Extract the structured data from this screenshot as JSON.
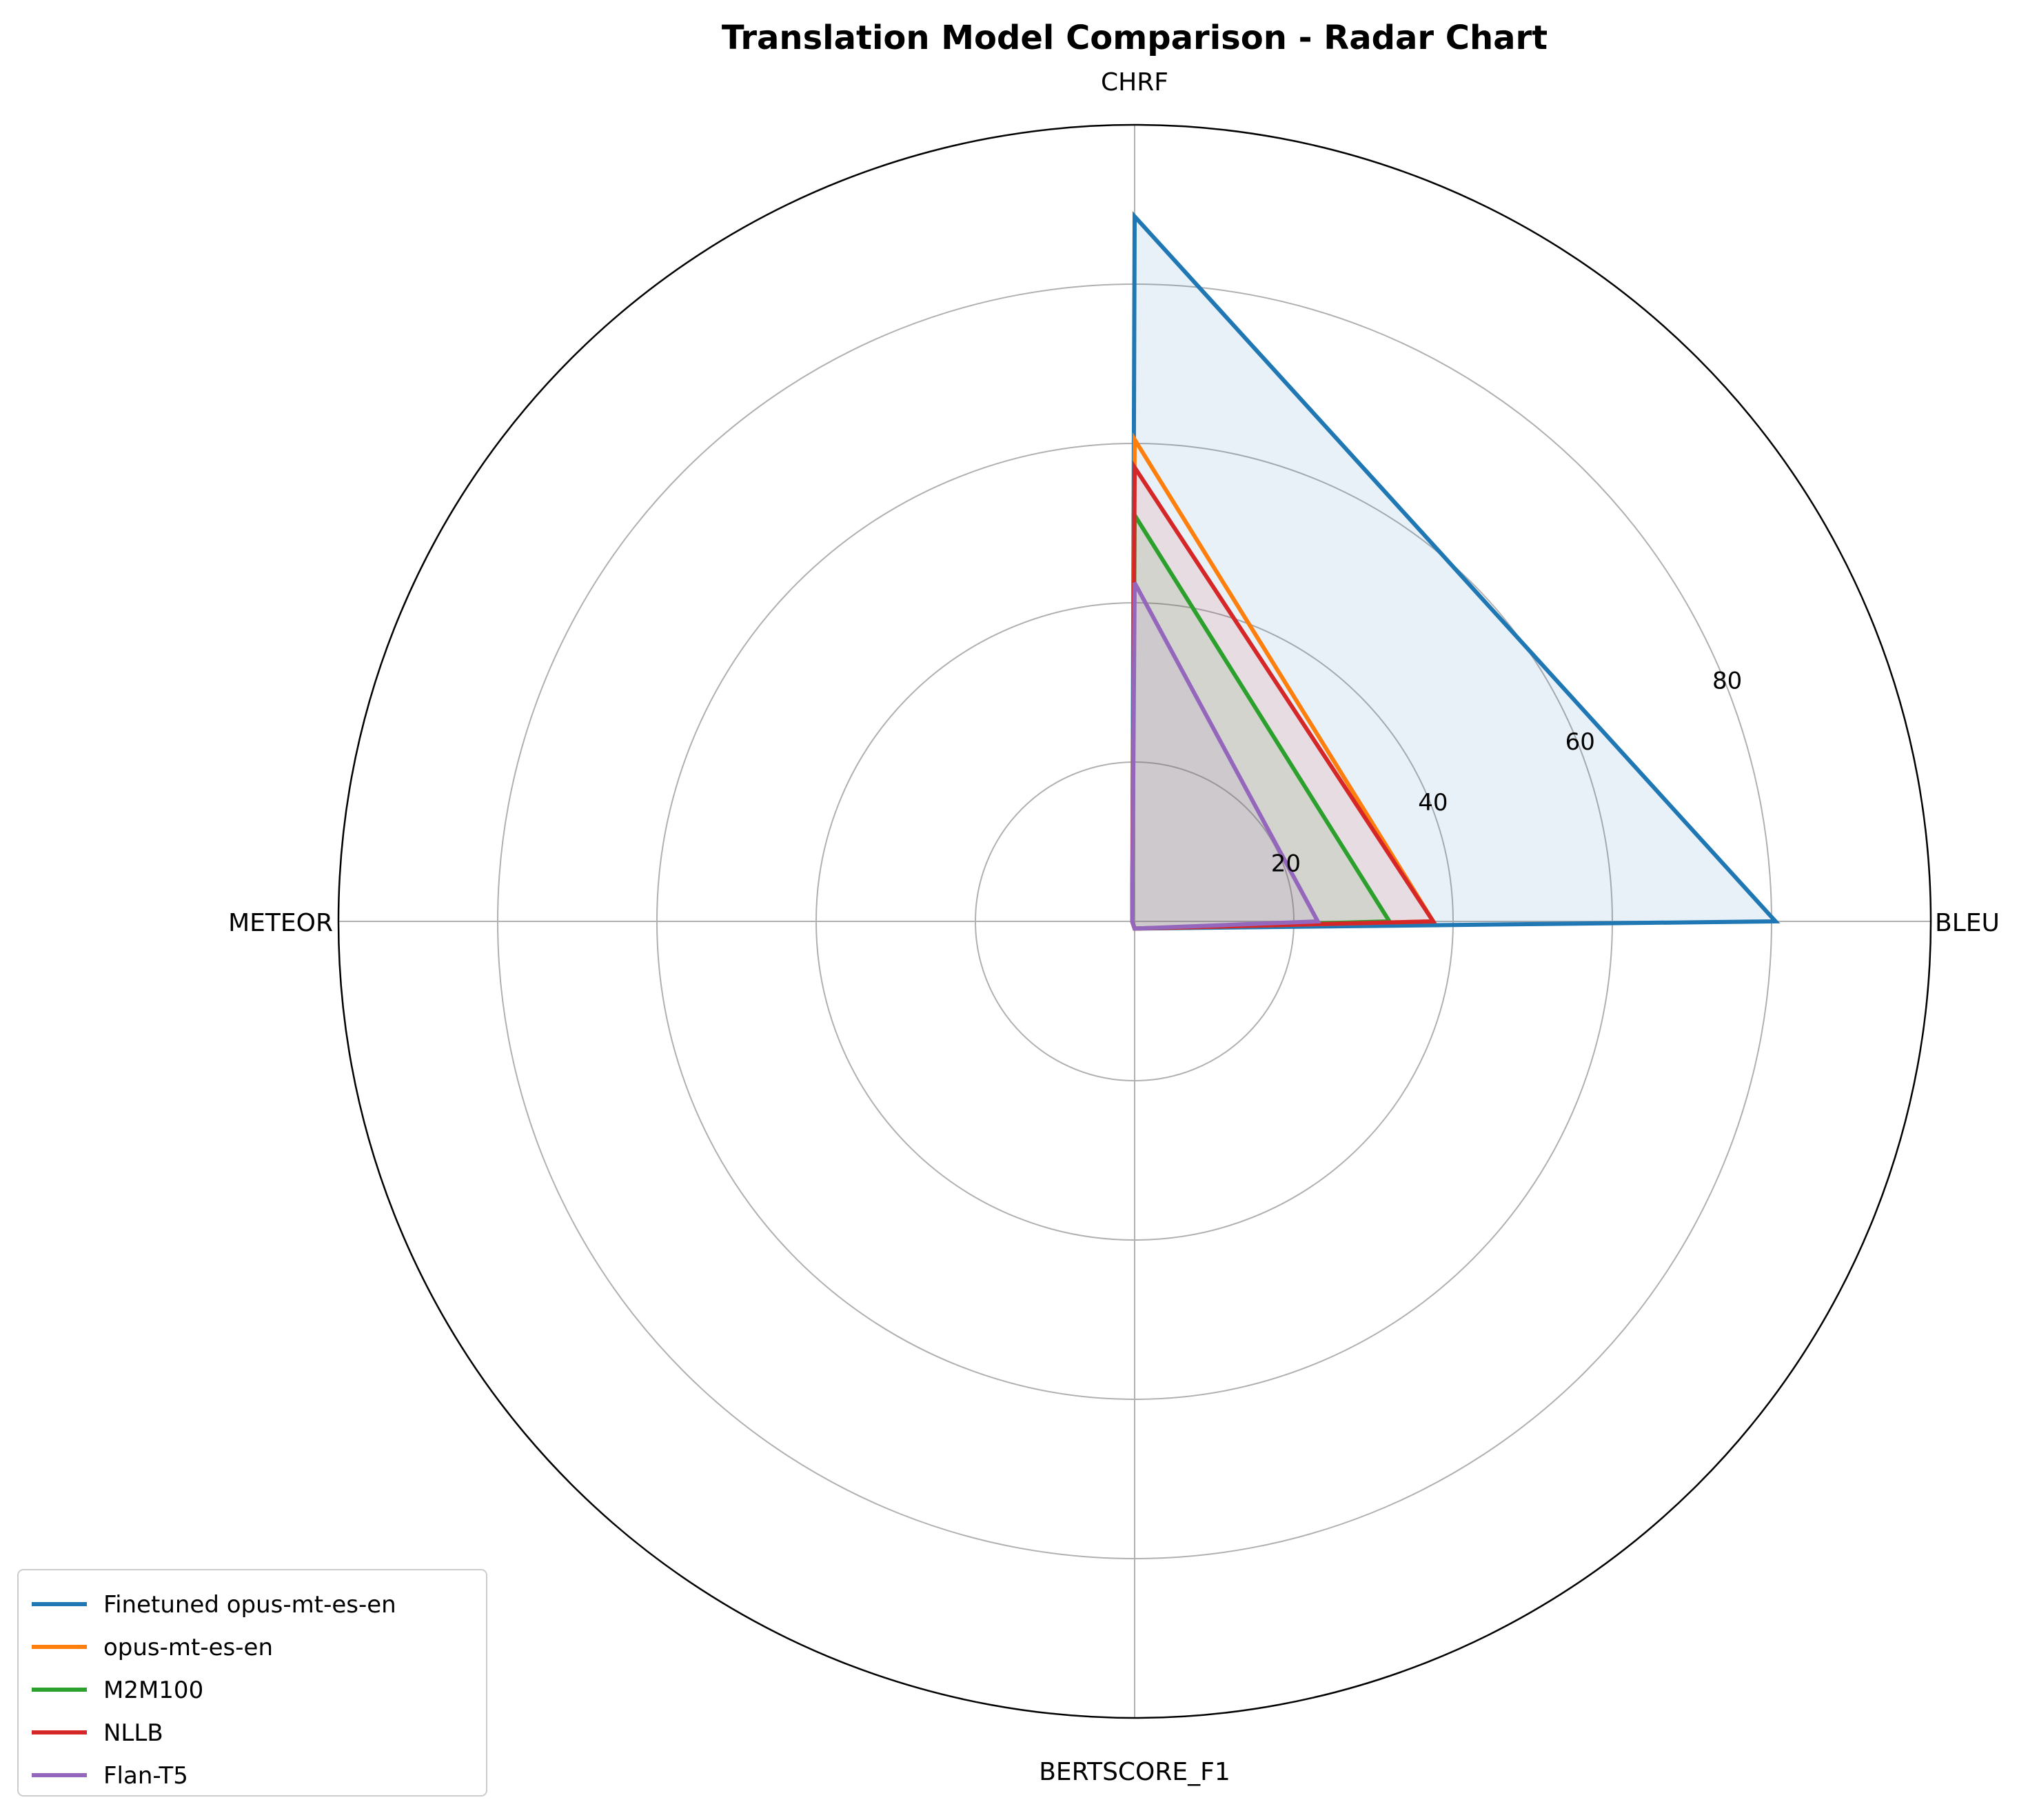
{
  "chart_data": {
    "type": "radar",
    "title": "Translation Model Comparison - Radar Chart",
    "axes": [
      "BLEU",
      "CHRF",
      "METEOR",
      "BERTSCORE_F1"
    ],
    "rlim": [
      0,
      100
    ],
    "r_ticks": [
      20,
      40,
      60,
      80
    ],
    "r_tick_labels": [
      "20",
      "40",
      "60",
      "80"
    ],
    "grid": true,
    "legend_position": "lower-left",
    "series": [
      {
        "name": "Finetuned opus-mt-es-en",
        "color": "#1f77b4",
        "values": [
          80.5,
          88.5,
          0.3,
          0.9
        ],
        "fill": true
      },
      {
        "name": "opus-mt-es-en",
        "color": "#ff7f0e",
        "values": [
          37.5,
          60.5,
          0.3,
          0.9
        ],
        "fill": false
      },
      {
        "name": "M2M100",
        "color": "#2ca02c",
        "values": [
          32.0,
          51.0,
          0.3,
          0.9
        ],
        "fill": true
      },
      {
        "name": "NLLB",
        "color": "#d62728",
        "values": [
          37.5,
          57.0,
          0.3,
          0.9
        ],
        "fill": true
      },
      {
        "name": "Flan-T5",
        "color": "#9467bd",
        "values": [
          23.0,
          42.5,
          0.3,
          0.9
        ],
        "fill": true
      }
    ]
  }
}
